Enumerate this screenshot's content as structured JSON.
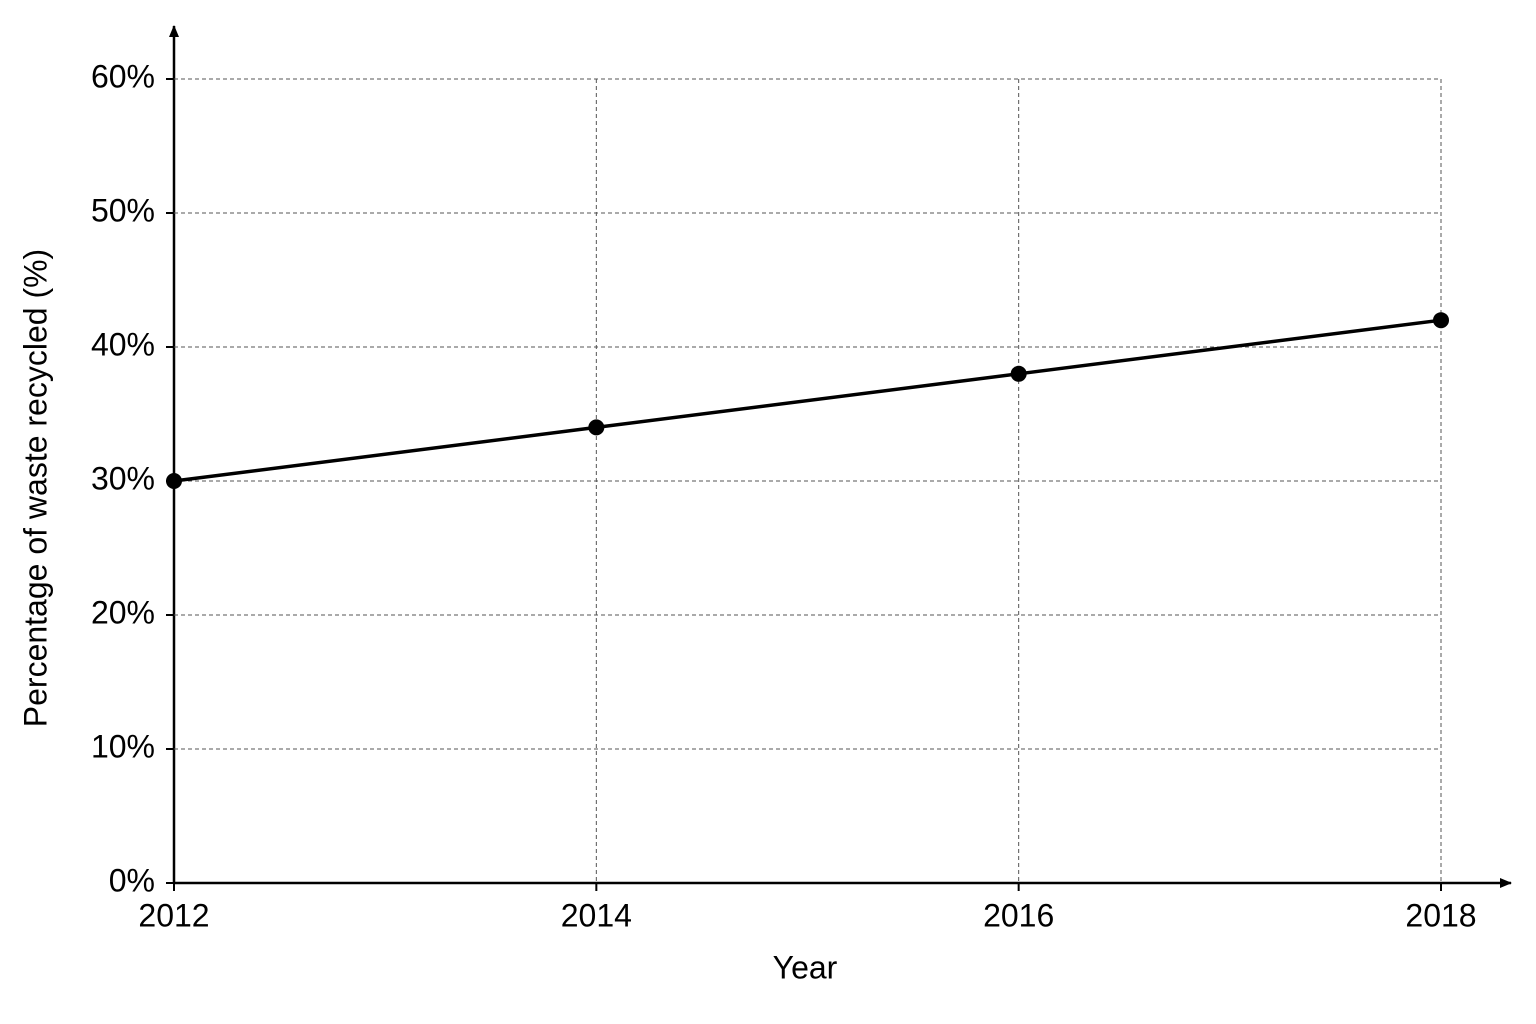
{
  "chart_data": {
    "type": "line",
    "x_label": "Year",
    "y_label": "Percentage of waste recycled (%)",
    "x": [
      2012,
      2014,
      2016,
      2018
    ],
    "values": [
      30,
      34,
      38,
      42
    ],
    "color": "#000000",
    "xlim": [
      2012,
      2018
    ],
    "xticks": [
      2012,
      2014,
      2016,
      2018
    ],
    "ylim": [
      0,
      60
    ],
    "yticks": [
      {
        "value": 0,
        "label": "0%"
      },
      {
        "value": 10,
        "label": "10%"
      },
      {
        "value": 20,
        "label": "20%"
      },
      {
        "value": 30,
        "label": "30%"
      },
      {
        "value": 40,
        "label": "40%"
      },
      {
        "value": 50,
        "label": "50%"
      },
      {
        "value": 60,
        "label": "60%"
      }
    ],
    "grid": true
  }
}
